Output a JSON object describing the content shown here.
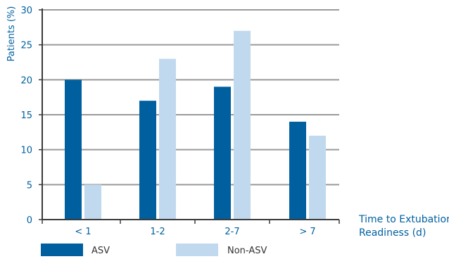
{
  "chart_data": {
    "type": "bar",
    "ylabel": "Patients (%)",
    "xlabel_lines": [
      "Time to Extubation",
      "Readiness (d)"
    ],
    "categories": [
      "< 1",
      "1-2",
      "2-7",
      "> 7"
    ],
    "series": [
      {
        "name": "ASV",
        "values": [
          20,
          17,
          19,
          14
        ]
      },
      {
        "name": "Non-ASV",
        "values": [
          5,
          23,
          27,
          12
        ]
      }
    ],
    "ylim": [
      0,
      30
    ],
    "yticks": [
      0,
      5,
      10,
      15,
      20,
      25,
      30
    ],
    "grid": true,
    "legend_position": "bottom-left"
  },
  "colors": {
    "asv": "#00609f",
    "non_asv": "#c1d9ee",
    "axis_text": "#00609f",
    "grid": "#9a9a9a",
    "axis": "#3a3a3a",
    "legend_text": "#333333"
  }
}
